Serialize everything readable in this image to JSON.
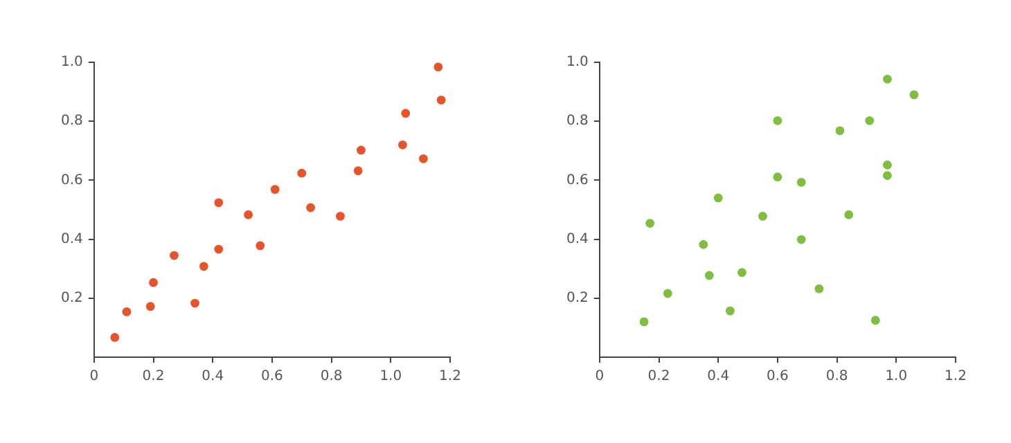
{
  "chart_data": [
    {
      "type": "scatter",
      "xlim": [
        0,
        1.2
      ],
      "ylim": [
        0,
        1.0
      ],
      "xticks": [
        0,
        0.2,
        0.4,
        0.6,
        0.8,
        {
          "value": 1.0,
          "label": "1.0"
        },
        1.2
      ],
      "yticks": [
        0.2,
        0.4,
        0.6,
        0.8,
        {
          "value": 1.0,
          "label": "1.0"
        }
      ],
      "grid": false,
      "marker": "circle",
      "series": [
        {
          "color": "#e8542a",
          "x": [
            0.07,
            0.11,
            0.19,
            0.2,
            0.27,
            0.34,
            0.37,
            0.42,
            0.42,
            0.52,
            0.56,
            0.61,
            0.7,
            0.73,
            0.83,
            0.89,
            0.9,
            1.04,
            1.05,
            1.11,
            1.16,
            1.17
          ],
          "values": [
            0.067,
            0.154,
            0.172,
            0.253,
            0.345,
            0.183,
            0.308,
            0.524,
            0.366,
            0.483,
            0.378,
            0.569,
            0.624,
            0.507,
            0.478,
            0.632,
            0.702,
            0.72,
            0.827,
            0.673,
            0.984,
            0.872
          ]
        }
      ]
    },
    {
      "type": "scatter",
      "xlim": [
        0,
        1.2
      ],
      "ylim": [
        0,
        1.0
      ],
      "xticks": [
        0,
        0.2,
        0.4,
        0.6,
        0.8,
        {
          "value": 1.0,
          "label": "1.0"
        },
        1.2
      ],
      "yticks": [
        0.2,
        0.4,
        0.6,
        0.8,
        {
          "value": 1.0,
          "label": "1.0"
        }
      ],
      "grid": false,
      "marker": "circle",
      "series": [
        {
          "color": "#7fbf3f",
          "x": [
            0.15,
            0.17,
            0.23,
            0.35,
            0.37,
            0.4,
            0.44,
            0.48,
            0.55,
            0.6,
            0.6,
            0.68,
            0.68,
            0.74,
            0.81,
            0.84,
            0.91,
            0.93,
            0.97,
            0.97,
            0.97,
            1.06
          ],
          "values": [
            0.12,
            0.454,
            0.216,
            0.382,
            0.277,
            0.54,
            0.157,
            0.287,
            0.478,
            0.802,
            0.611,
            0.593,
            0.399,
            0.232,
            0.768,
            0.483,
            0.802,
            0.125,
            0.943,
            0.652,
            0.616,
            0.89
          ]
        }
      ]
    }
  ]
}
